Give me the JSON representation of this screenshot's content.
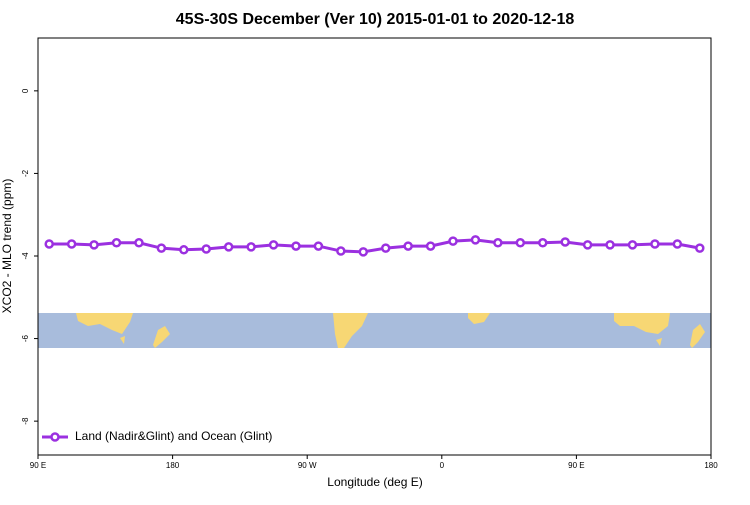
{
  "chart_data": {
    "type": "line",
    "title": "45S-30S December (Ver 10)   2015-01-01 to 2020-12-18",
    "x_label": "Longitude (deg E)",
    "y_label": "XCO2 - MLO trend (ppm)",
    "xlim": [
      90,
      540
    ],
    "ylim": [
      -8.82,
      1.28
    ],
    "xticks": [
      {
        "value": 90,
        "label": "90 E"
      },
      180,
      {
        "value": 270,
        "label": "90 W"
      },
      {
        "value": 360,
        "label": "0"
      },
      {
        "value": 450,
        "label": "90 E"
      },
      {
        "value": 540,
        "label": "180"
      }
    ],
    "yticks": [
      0,
      -2,
      -4,
      -6,
      -8
    ],
    "x": [
      97.5,
      112.5,
      127.5,
      142.5,
      157.5,
      172.5,
      187.5,
      202.5,
      217.5,
      232.5,
      247.5,
      262.5,
      277.5,
      292.5,
      307.5,
      322.5,
      337.5,
      352.5,
      367.5,
      382.5,
      397.5,
      412.5,
      427.5,
      442.5,
      457.5,
      472.5,
      487.5,
      502.5,
      517.5,
      532.5
    ],
    "series": [
      {
        "name": "Land (Nadir&Glint) and Ocean (Glint)",
        "color": "#9b30e0",
        "values": [
          -3.71,
          -3.71,
          -3.73,
          -3.68,
          -3.68,
          -3.81,
          -3.85,
          -3.83,
          -3.78,
          -3.78,
          -3.73,
          -3.76,
          -3.76,
          -3.88,
          -3.9,
          -3.81,
          -3.76,
          -3.76,
          -3.64,
          -3.61,
          -3.68,
          -3.68,
          -3.68,
          -3.66,
          -3.73,
          -3.73,
          -3.73,
          -3.71,
          -3.71,
          -3.81
        ]
      }
    ],
    "legend": "bottom-left"
  }
}
